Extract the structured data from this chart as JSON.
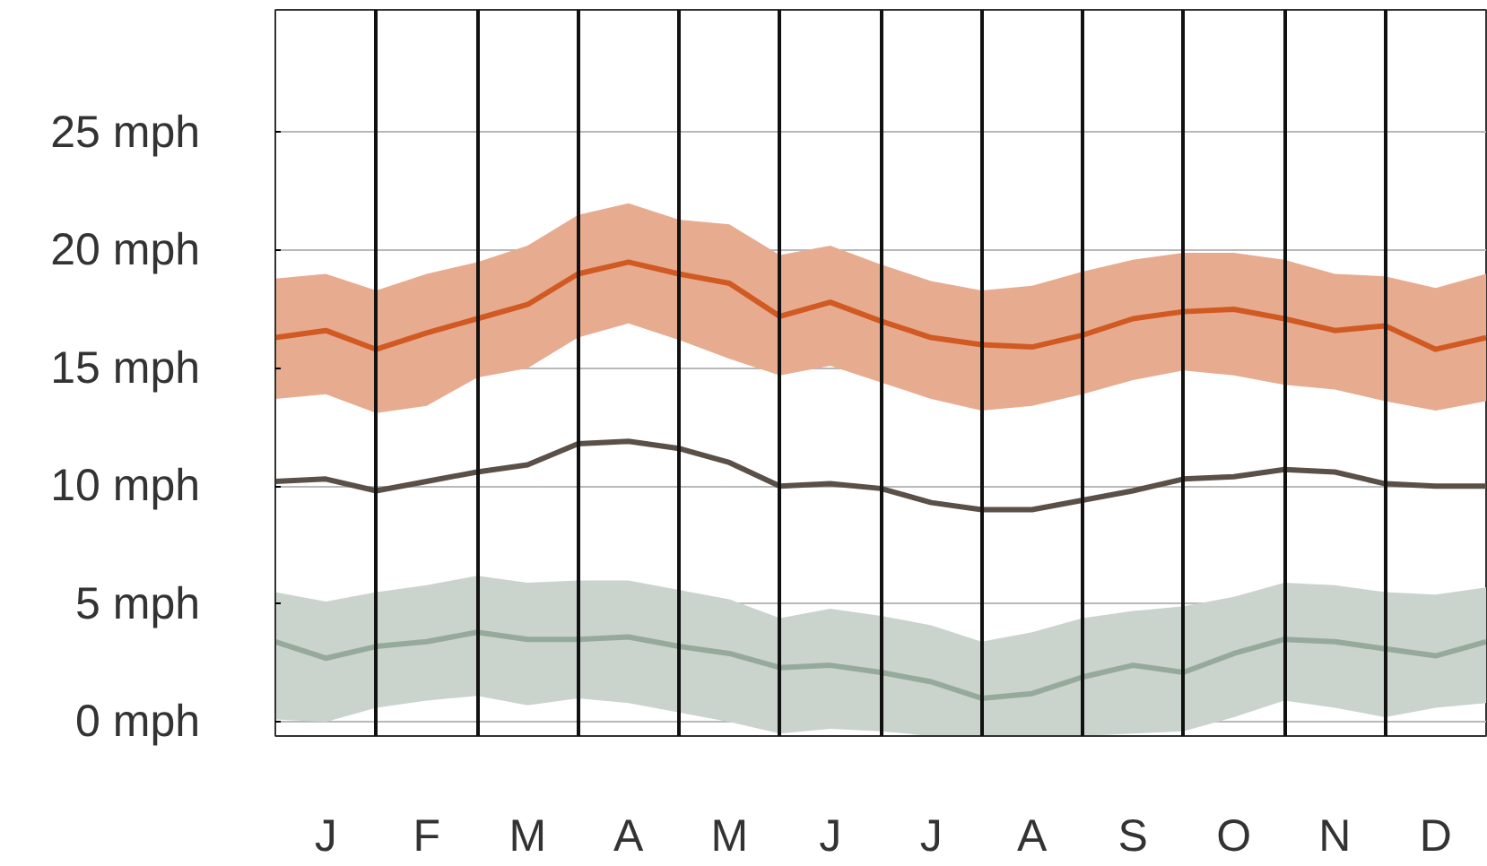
{
  "chart_data": {
    "type": "line",
    "categories": [
      null,
      "J",
      null,
      "F",
      null,
      "M",
      null,
      "A",
      null,
      "M",
      null,
      "J",
      null,
      "J",
      null,
      "A",
      null,
      "S",
      null,
      "O",
      null,
      "N",
      null,
      "D",
      null
    ],
    "series": [
      {
        "color": "#d05a22",
        "values": [
          16.3,
          16.6,
          15.8,
          16.5,
          17.1,
          17.7,
          19.0,
          19.5,
          19.0,
          18.6,
          17.2,
          17.8,
          17.0,
          16.3,
          16.0,
          15.9,
          16.4,
          17.1,
          17.4,
          17.5,
          17.1,
          16.6,
          16.8,
          15.8,
          16.3
        ],
        "upper": [
          18.8,
          19.0,
          18.3,
          19.0,
          19.5,
          20.2,
          21.5,
          22.0,
          21.3,
          21.1,
          19.8,
          20.2,
          19.4,
          18.7,
          18.3,
          18.5,
          19.1,
          19.6,
          19.9,
          19.9,
          19.6,
          19.0,
          18.9,
          18.4,
          19.0
        ],
        "lower": [
          13.7,
          13.9,
          13.1,
          13.4,
          14.6,
          15.0,
          16.3,
          16.9,
          16.2,
          15.4,
          14.7,
          15.1,
          14.4,
          13.7,
          13.2,
          13.4,
          13.9,
          14.5,
          14.9,
          14.7,
          14.3,
          14.1,
          13.6,
          13.2,
          13.6
        ]
      },
      {
        "color": "#5a5048",
        "values": [
          10.2,
          10.3,
          9.8,
          10.2,
          10.6,
          10.9,
          11.8,
          11.9,
          11.6,
          11.0,
          10.0,
          10.1,
          9.9,
          9.3,
          9.0,
          9.0,
          9.4,
          9.8,
          10.3,
          10.4,
          10.7,
          10.6,
          10.1,
          10.0,
          10.0
        ]
      },
      {
        "color": "#96aa9c",
        "values": [
          3.4,
          2.7,
          3.2,
          3.4,
          3.8,
          3.5,
          3.5,
          3.6,
          3.2,
          2.9,
          2.3,
          2.4,
          2.1,
          1.7,
          1.0,
          1.2,
          1.9,
          2.4,
          2.1,
          2.9,
          3.5,
          3.4,
          3.1,
          2.8,
          3.4
        ],
        "upper": [
          5.5,
          5.1,
          5.5,
          5.8,
          6.2,
          5.9,
          6.0,
          6.0,
          5.6,
          5.2,
          4.4,
          4.8,
          4.5,
          4.1,
          3.4,
          3.8,
          4.4,
          4.7,
          4.9,
          5.3,
          5.9,
          5.8,
          5.5,
          5.4,
          5.7
        ],
        "lower": [
          0.1,
          0.0,
          0.6,
          0.9,
          1.1,
          0.7,
          1.0,
          0.8,
          0.4,
          0.0,
          -0.5,
          -0.3,
          -0.4,
          -0.6,
          -0.6,
          -0.6,
          -0.6,
          -0.5,
          -0.4,
          0.2,
          0.9,
          0.6,
          0.2,
          0.6,
          0.8
        ]
      }
    ],
    "ylim": [
      -0.6,
      30.2
    ],
    "yticks": [
      {
        "value": 0,
        "label": "0 mph"
      },
      {
        "value": 5,
        "label": "5 mph"
      },
      {
        "value": 10,
        "label": "10 mph"
      },
      {
        "value": 15,
        "label": "15 mph"
      },
      {
        "value": 20,
        "label": "20 mph"
      },
      {
        "value": 25,
        "label": "25 mph"
      }
    ],
    "grid": true,
    "line_style": "solid"
  }
}
